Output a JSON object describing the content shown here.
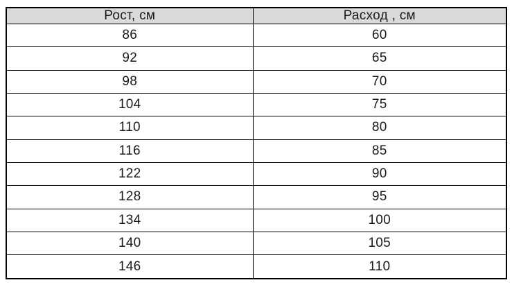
{
  "table": {
    "headers": [
      "Рост, см",
      "Расход , см"
    ],
    "rows": [
      [
        "86",
        "60"
      ],
      [
        "92",
        "65"
      ],
      [
        "98",
        "70"
      ],
      [
        "104",
        "75"
      ],
      [
        "110",
        "80"
      ],
      [
        "116",
        "85"
      ],
      [
        "122",
        "90"
      ],
      [
        "128",
        "95"
      ],
      [
        "134",
        "100"
      ],
      [
        "140",
        "105"
      ],
      [
        "146",
        "110"
      ]
    ]
  },
  "colors": {
    "header_bg": "#d9d9d9",
    "border": "#000000",
    "text": "#1a1a1a",
    "page_bg": "#ffffff"
  }
}
